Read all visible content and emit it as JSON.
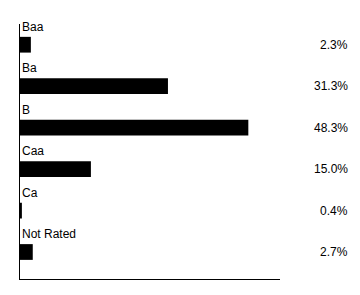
{
  "chart_data": {
    "type": "bar",
    "orientation": "horizontal",
    "categories": [
      "Baa",
      "Ba",
      "B",
      "Caa",
      "Ca",
      "Not Rated"
    ],
    "values": [
      2.3,
      31.3,
      48.3,
      15.0,
      0.4,
      2.7
    ],
    "value_labels": [
      "2.3%",
      "31.3%",
      "48.3%",
      "15.0%",
      "0.4%",
      "2.7%"
    ],
    "data_labels": true,
    "color": "#000000",
    "xlim": [
      0,
      55
    ],
    "tick_labels": false,
    "grid": false
  }
}
